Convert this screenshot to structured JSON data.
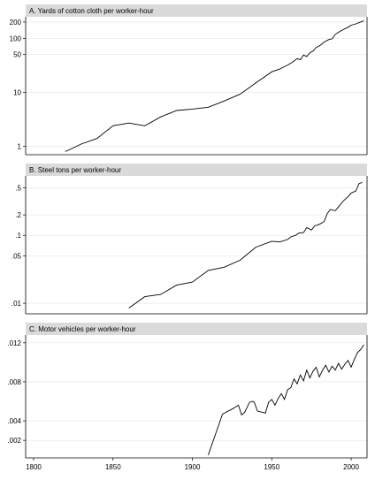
{
  "chart_data": [
    {
      "type": "line",
      "title": "A. Yards of cotton cloth per worker-hour",
      "y_scale": "log",
      "ylim": [
        0.7,
        250
      ],
      "yticks": [
        1,
        10,
        50,
        100,
        200
      ],
      "ytick_labels": [
        "1",
        "10",
        "50",
        "100",
        "200"
      ],
      "xlim": [
        1795,
        2010
      ],
      "grid": true,
      "x": [
        1820,
        1830,
        1840,
        1850,
        1860,
        1870,
        1880,
        1890,
        1900,
        1910,
        1920,
        1930,
        1940,
        1950,
        1955,
        1960,
        1963,
        1966,
        1968,
        1970,
        1972,
        1974,
        1976,
        1978,
        1980,
        1983,
        1986,
        1988,
        1990,
        1993,
        1995,
        1998,
        2000,
        2003,
        2005,
        2008
      ],
      "y": [
        0.8,
        1.1,
        1.4,
        2.4,
        2.7,
        2.4,
        3.5,
        4.6,
        4.9,
        5.3,
        6.9,
        9.2,
        15,
        24,
        27,
        32,
        36,
        42,
        40,
        49,
        46,
        54,
        58,
        68,
        72,
        85,
        95,
        98,
        118,
        135,
        145,
        160,
        175,
        185,
        195,
        210
      ]
    },
    {
      "type": "line",
      "title": "B. Steel tons per worker-hour",
      "y_scale": "log",
      "ylim": [
        0.007,
        0.75
      ],
      "yticks": [
        0.01,
        0.05,
        0.1,
        0.2,
        0.5
      ],
      "ytick_labels": [
        ".01",
        ".05",
        ".1",
        ".2",
        ".5"
      ],
      "xlim": [
        1795,
        2010
      ],
      "grid": true,
      "x": [
        1860,
        1870,
        1880,
        1890,
        1900,
        1910,
        1920,
        1930,
        1940,
        1950,
        1955,
        1960,
        1962,
        1965,
        1967,
        1970,
        1972,
        1975,
        1977,
        1980,
        1983,
        1985,
        1987,
        1990,
        1993,
        1995,
        1998,
        2000,
        2003,
        2005,
        2007
      ],
      "y": [
        0.0085,
        0.0125,
        0.0135,
        0.0185,
        0.0205,
        0.0305,
        0.034,
        0.043,
        0.067,
        0.082,
        0.08,
        0.087,
        0.095,
        0.1,
        0.108,
        0.11,
        0.13,
        0.12,
        0.138,
        0.145,
        0.16,
        0.21,
        0.24,
        0.23,
        0.28,
        0.32,
        0.37,
        0.42,
        0.45,
        0.58,
        0.6
      ]
    },
    {
      "type": "line",
      "title": "C. Motor vehicles per worker-hour",
      "y_scale": "linear",
      "ylim": [
        0.0002,
        0.0128
      ],
      "yticks": [
        0.002,
        0.004,
        0.008,
        0.012
      ],
      "ytick_labels": [
        ".002",
        ".004",
        ".008",
        ".012"
      ],
      "xlim": [
        1795,
        2010
      ],
      "xticks": [
        1800,
        1850,
        1900,
        1950,
        2000
      ],
      "xtick_labels": [
        "1800",
        "1850",
        "1900",
        "1950",
        "2000"
      ],
      "grid": true,
      "x": [
        1910,
        1919,
        1925,
        1929,
        1931,
        1933,
        1936,
        1938,
        1939,
        1941,
        1946,
        1948,
        1950,
        1952,
        1954,
        1956,
        1958,
        1960,
        1962,
        1964,
        1966,
        1968,
        1970,
        1972,
        1974,
        1976,
        1978,
        1980,
        1982,
        1984,
        1986,
        1988,
        1990,
        1992,
        1994,
        1996,
        1998,
        2000,
        2002,
        2004,
        2006,
        2008
      ],
      "y": [
        0.0005,
        0.0047,
        0.0052,
        0.0056,
        0.0046,
        0.0049,
        0.0059,
        0.006,
        0.0059,
        0.005,
        0.0048,
        0.0059,
        0.0062,
        0.0056,
        0.0063,
        0.0068,
        0.0062,
        0.0072,
        0.0074,
        0.0083,
        0.0078,
        0.0087,
        0.0081,
        0.0092,
        0.0084,
        0.0091,
        0.0095,
        0.0085,
        0.0092,
        0.0097,
        0.009,
        0.0096,
        0.0092,
        0.0099,
        0.0093,
        0.0098,
        0.0102,
        0.0095,
        0.0103,
        0.011,
        0.0113,
        0.0118
      ]
    }
  ]
}
